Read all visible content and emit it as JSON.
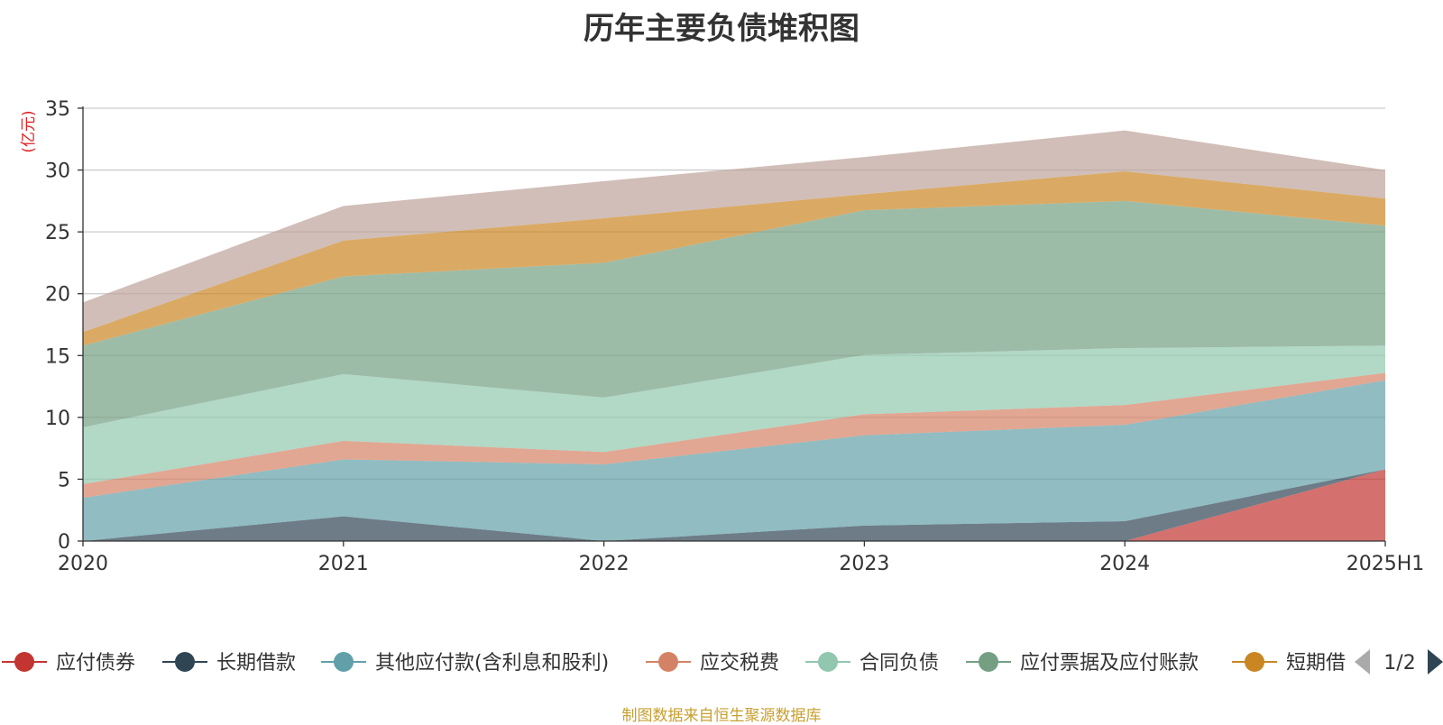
{
  "title": "历年主要负债堆积图",
  "source": "制图数据来自恒生聚源数据库",
  "chart_data": {
    "type": "area",
    "stacked": true,
    "ylabel": "(亿元)",
    "ylim": [
      0,
      35
    ],
    "yticks": [
      0,
      5,
      10,
      15,
      20,
      25,
      30,
      35
    ],
    "grid": true,
    "x": [
      "2020",
      "2021",
      "2022",
      "2023",
      "2024",
      "2025H1"
    ],
    "series": [
      {
        "name": "应付债券",
        "color": "#c23531",
        "values": [
          0,
          0,
          0,
          0,
          0,
          5.8
        ]
      },
      {
        "name": "长期借款",
        "color": "#2f4554",
        "values": [
          0,
          2.0,
          0,
          1.25,
          1.6,
          0
        ]
      },
      {
        "name": "其他应付款(含利息和股利)",
        "color": "#61a0a8",
        "values": [
          3.5,
          4.6,
          6.2,
          7.3,
          7.8,
          7.2
        ]
      },
      {
        "name": "应交税费",
        "color": "#d48265",
        "values": [
          1.1,
          1.5,
          1.0,
          1.7,
          1.6,
          0.6
        ]
      },
      {
        "name": "合同负债",
        "color": "#91c7ae",
        "values": [
          4.6,
          5.4,
          4.4,
          4.8,
          4.6,
          2.2
        ]
      },
      {
        "name": "应付票据及应付账款",
        "color": "#749f83",
        "values": [
          6.6,
          7.9,
          10.9,
          11.7,
          11.9,
          9.7
        ]
      },
      {
        "name": "短期借款",
        "color": "#ca8622",
        "values": [
          1.1,
          2.9,
          3.6,
          1.3,
          2.4,
          2.2
        ]
      },
      {
        "name": "",
        "color": "#bda29a",
        "values": [
          2.4,
          2.8,
          3.0,
          3.0,
          3.3,
          2.3
        ]
      }
    ],
    "legend": {
      "placement": "bottom",
      "visible_labels": [
        "应付债券",
        "长期借款",
        "其他应付款(含利息和股利)",
        "应交税费",
        "合同负债",
        "应付票据及应付账款",
        "短期借款"
      ],
      "truncated_label": "短期借",
      "page": "1/2"
    }
  }
}
